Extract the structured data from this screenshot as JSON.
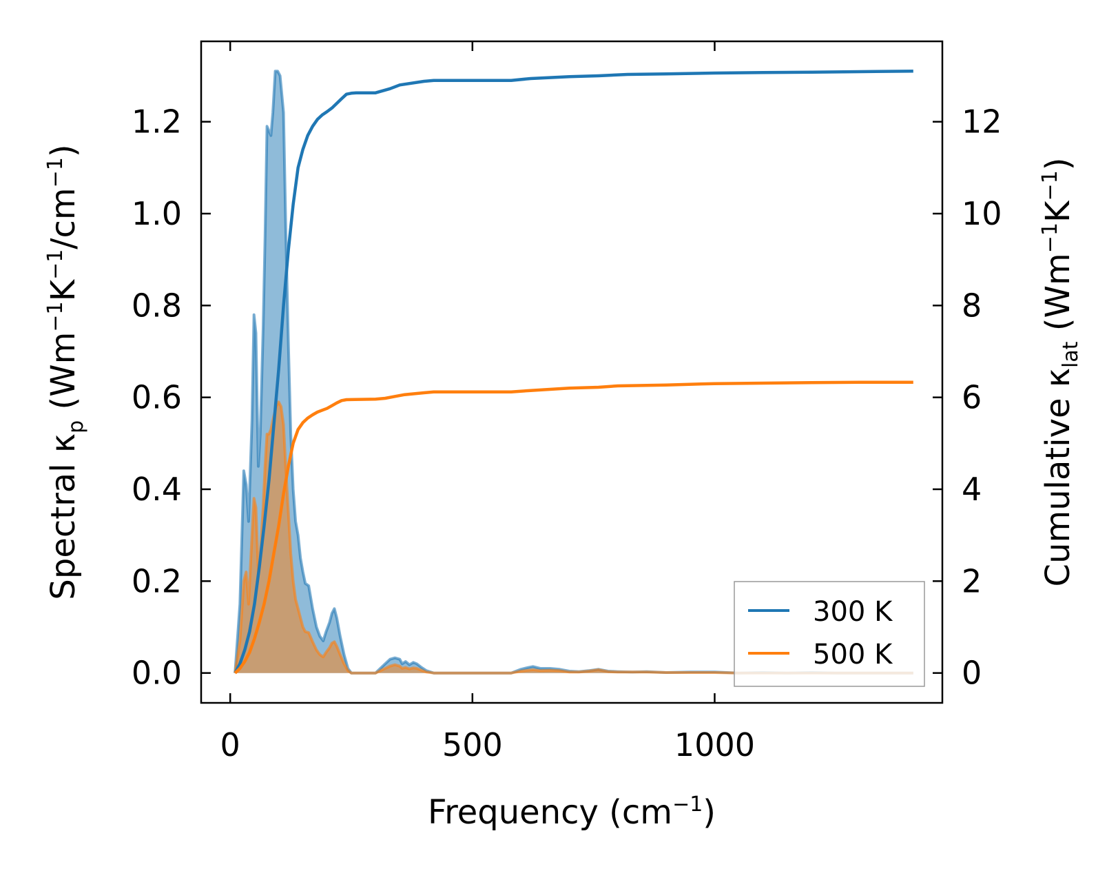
{
  "chart_data": {
    "type": "area",
    "xlabel": {
      "main": "Frequency (cm",
      "sup": "−1",
      "tail": ")"
    },
    "ylabel_left": {
      "a": "Spectral κ",
      "a_sub": "p",
      "b": " (Wm",
      "b_sup": "−1",
      "c": "K",
      "c_sup": "−1",
      "d": "/cm",
      "d_sup": "−1",
      "e": ")"
    },
    "ylabel_right": {
      "a": "Cumulative κ",
      "a_sub": "lat",
      "b": " (Wm",
      "b_sup": "−1",
      "c": "K",
      "c_sup": "−1",
      "d": ")"
    },
    "xlim": [
      -60,
      1470
    ],
    "ylim_left": [
      -0.065,
      1.375
    ],
    "ylim_right": [
      -0.65,
      13.75
    ],
    "x_ticks": [
      0,
      500,
      1000
    ],
    "x_tick_labels": [
      "0",
      "500",
      "1000"
    ],
    "y_left_ticks": [
      0.0,
      0.2,
      0.4,
      0.6,
      0.8,
      1.0,
      1.2
    ],
    "y_left_tick_labels": [
      "0.0",
      "0.2",
      "0.4",
      "0.6",
      "0.8",
      "1.0",
      "1.2"
    ],
    "y_right_ticks": [
      0,
      2,
      4,
      6,
      8,
      10,
      12
    ],
    "y_right_tick_labels": [
      "0",
      "2",
      "4",
      "6",
      "8",
      "10",
      "12"
    ],
    "legend_position": "lower-right",
    "series": [
      {
        "name": "300 K",
        "color": "#1f77b4",
        "spectral": [
          [
            10,
            0
          ],
          [
            20,
            0.15
          ],
          [
            28,
            0.44
          ],
          [
            33,
            0.41
          ],
          [
            38,
            0.33
          ],
          [
            45,
            0.55
          ],
          [
            49,
            0.78
          ],
          [
            53,
            0.74
          ],
          [
            58,
            0.45
          ],
          [
            62,
            0.52
          ],
          [
            68,
            0.75
          ],
          [
            72,
            0.95
          ],
          [
            76,
            1.19
          ],
          [
            80,
            1.18
          ],
          [
            84,
            1.17
          ],
          [
            88,
            1.22
          ],
          [
            93,
            1.31
          ],
          [
            98,
            1.31
          ],
          [
            103,
            1.3
          ],
          [
            110,
            1.22
          ],
          [
            115,
            0.95
          ],
          [
            120,
            0.72
          ],
          [
            125,
            0.52
          ],
          [
            130,
            0.4
          ],
          [
            135,
            0.33
          ],
          [
            140,
            0.3
          ],
          [
            145,
            0.25
          ],
          [
            150,
            0.22
          ],
          [
            155,
            0.195
          ],
          [
            162,
            0.19
          ],
          [
            170,
            0.14
          ],
          [
            178,
            0.1
          ],
          [
            185,
            0.08
          ],
          [
            192,
            0.07
          ],
          [
            198,
            0.09
          ],
          [
            205,
            0.11
          ],
          [
            210,
            0.13
          ],
          [
            215,
            0.14
          ],
          [
            220,
            0.12
          ],
          [
            227,
            0.08
          ],
          [
            235,
            0.04
          ],
          [
            243,
            0.01
          ],
          [
            250,
            0
          ],
          [
            300,
            0
          ],
          [
            310,
            0.01
          ],
          [
            320,
            0.02
          ],
          [
            330,
            0.03
          ],
          [
            340,
            0.033
          ],
          [
            350,
            0.03
          ],
          [
            355,
            0.02
          ],
          [
            362,
            0.025
          ],
          [
            370,
            0.018
          ],
          [
            378,
            0.023
          ],
          [
            385,
            0.02
          ],
          [
            395,
            0.012
          ],
          [
            405,
            0.005
          ],
          [
            420,
            0
          ],
          [
            580,
            0
          ],
          [
            600,
            0.008
          ],
          [
            615,
            0.012
          ],
          [
            625,
            0.014
          ],
          [
            640,
            0.01
          ],
          [
            660,
            0.01
          ],
          [
            680,
            0.008
          ],
          [
            700,
            0.004
          ],
          [
            720,
            0.003
          ],
          [
            740,
            0.005
          ],
          [
            760,
            0.008
          ],
          [
            780,
            0.004
          ],
          [
            800,
            0.003
          ],
          [
            830,
            0.002
          ],
          [
            860,
            0.003
          ],
          [
            900,
            0.001
          ],
          [
            950,
            0.002
          ],
          [
            1000,
            0.002
          ],
          [
            1050,
            0
          ],
          [
            1100,
            0.001
          ],
          [
            1150,
            0
          ],
          [
            1200,
            0.001
          ],
          [
            1250,
            0
          ],
          [
            1300,
            0
          ],
          [
            1410,
            0
          ]
        ],
        "cumulative": [
          [
            10,
            0
          ],
          [
            20,
            0.2
          ],
          [
            30,
            0.5
          ],
          [
            40,
            0.9
          ],
          [
            50,
            1.5
          ],
          [
            60,
            2.3
          ],
          [
            70,
            3.2
          ],
          [
            80,
            4.2
          ],
          [
            90,
            5.4
          ],
          [
            100,
            6.6
          ],
          [
            110,
            8.0
          ],
          [
            120,
            9.2
          ],
          [
            130,
            10.2
          ],
          [
            140,
            11.0
          ],
          [
            150,
            11.4
          ],
          [
            160,
            11.7
          ],
          [
            170,
            11.9
          ],
          [
            180,
            12.05
          ],
          [
            190,
            12.15
          ],
          [
            200,
            12.22
          ],
          [
            210,
            12.3
          ],
          [
            220,
            12.4
          ],
          [
            230,
            12.5
          ],
          [
            240,
            12.6
          ],
          [
            250,
            12.62
          ],
          [
            260,
            12.63
          ],
          [
            300,
            12.63
          ],
          [
            310,
            12.66
          ],
          [
            330,
            12.72
          ],
          [
            350,
            12.8
          ],
          [
            400,
            12.88
          ],
          [
            420,
            12.9
          ],
          [
            500,
            12.9
          ],
          [
            580,
            12.9
          ],
          [
            620,
            12.94
          ],
          [
            700,
            12.98
          ],
          [
            760,
            13.0
          ],
          [
            820,
            13.03
          ],
          [
            900,
            13.04
          ],
          [
            1000,
            13.06
          ],
          [
            1100,
            13.07
          ],
          [
            1200,
            13.08
          ],
          [
            1300,
            13.09
          ],
          [
            1410,
            13.1
          ]
        ]
      },
      {
        "name": "500 K",
        "color": "#ff7f0e",
        "spectral": [
          [
            10,
            0
          ],
          [
            20,
            0.07
          ],
          [
            28,
            0.2
          ],
          [
            33,
            0.22
          ],
          [
            38,
            0.15
          ],
          [
            45,
            0.3
          ],
          [
            49,
            0.38
          ],
          [
            53,
            0.36
          ],
          [
            58,
            0.22
          ],
          [
            62,
            0.26
          ],
          [
            68,
            0.36
          ],
          [
            72,
            0.45
          ],
          [
            76,
            0.52
          ],
          [
            80,
            0.52
          ],
          [
            84,
            0.53
          ],
          [
            88,
            0.55
          ],
          [
            95,
            0.58
          ],
          [
            100,
            0.59
          ],
          [
            105,
            0.58
          ],
          [
            110,
            0.54
          ],
          [
            115,
            0.44
          ],
          [
            120,
            0.35
          ],
          [
            125,
            0.26
          ],
          [
            130,
            0.2
          ],
          [
            135,
            0.16
          ],
          [
            140,
            0.14
          ],
          [
            145,
            0.12
          ],
          [
            150,
            0.1
          ],
          [
            155,
            0.09
          ],
          [
            162,
            0.088
          ],
          [
            170,
            0.068
          ],
          [
            178,
            0.05
          ],
          [
            185,
            0.04
          ],
          [
            192,
            0.035
          ],
          [
            198,
            0.045
          ],
          [
            205,
            0.055
          ],
          [
            210,
            0.065
          ],
          [
            215,
            0.068
          ],
          [
            220,
            0.058
          ],
          [
            227,
            0.04
          ],
          [
            235,
            0.02
          ],
          [
            243,
            0.005
          ],
          [
            250,
            0
          ],
          [
            300,
            0
          ],
          [
            310,
            0.005
          ],
          [
            320,
            0.01
          ],
          [
            330,
            0.015
          ],
          [
            340,
            0.018
          ],
          [
            350,
            0.015
          ],
          [
            355,
            0.01
          ],
          [
            362,
            0.012
          ],
          [
            370,
            0.009
          ],
          [
            378,
            0.011
          ],
          [
            385,
            0.01
          ],
          [
            395,
            0.006
          ],
          [
            405,
            0.002
          ],
          [
            420,
            0
          ],
          [
            580,
            0
          ],
          [
            600,
            0.004
          ],
          [
            615,
            0.006
          ],
          [
            625,
            0.007
          ],
          [
            640,
            0.005
          ],
          [
            660,
            0.006
          ],
          [
            680,
            0.005
          ],
          [
            700,
            0.002
          ],
          [
            720,
            0.002
          ],
          [
            740,
            0.004
          ],
          [
            760,
            0.007
          ],
          [
            780,
            0.003
          ],
          [
            800,
            0.002
          ],
          [
            830,
            0.002
          ],
          [
            860,
            0.002
          ],
          [
            900,
            0.001
          ],
          [
            950,
            0.001
          ],
          [
            1000,
            0.001
          ],
          [
            1050,
            0
          ],
          [
            1100,
            0
          ],
          [
            1150,
            0
          ],
          [
            1200,
            0
          ],
          [
            1250,
            0
          ],
          [
            1300,
            0
          ],
          [
            1410,
            0
          ]
        ],
        "cumulative": [
          [
            10,
            0
          ],
          [
            20,
            0.1
          ],
          [
            30,
            0.25
          ],
          [
            40,
            0.45
          ],
          [
            50,
            0.75
          ],
          [
            60,
            1.1
          ],
          [
            70,
            1.5
          ],
          [
            80,
            2.0
          ],
          [
            90,
            2.6
          ],
          [
            100,
            3.2
          ],
          [
            110,
            3.9
          ],
          [
            120,
            4.5
          ],
          [
            130,
            5.0
          ],
          [
            140,
            5.3
          ],
          [
            150,
            5.45
          ],
          [
            160,
            5.55
          ],
          [
            170,
            5.62
          ],
          [
            180,
            5.68
          ],
          [
            190,
            5.72
          ],
          [
            200,
            5.76
          ],
          [
            210,
            5.82
          ],
          [
            220,
            5.88
          ],
          [
            230,
            5.93
          ],
          [
            240,
            5.95
          ],
          [
            300,
            5.96
          ],
          [
            320,
            5.98
          ],
          [
            340,
            6.02
          ],
          [
            360,
            6.06
          ],
          [
            400,
            6.1
          ],
          [
            420,
            6.12
          ],
          [
            500,
            6.12
          ],
          [
            580,
            6.12
          ],
          [
            620,
            6.15
          ],
          [
            700,
            6.2
          ],
          [
            760,
            6.22
          ],
          [
            800,
            6.25
          ],
          [
            900,
            6.27
          ],
          [
            1000,
            6.3
          ],
          [
            1100,
            6.31
          ],
          [
            1200,
            6.32
          ],
          [
            1300,
            6.33
          ],
          [
            1410,
            6.33
          ]
        ]
      }
    ]
  }
}
